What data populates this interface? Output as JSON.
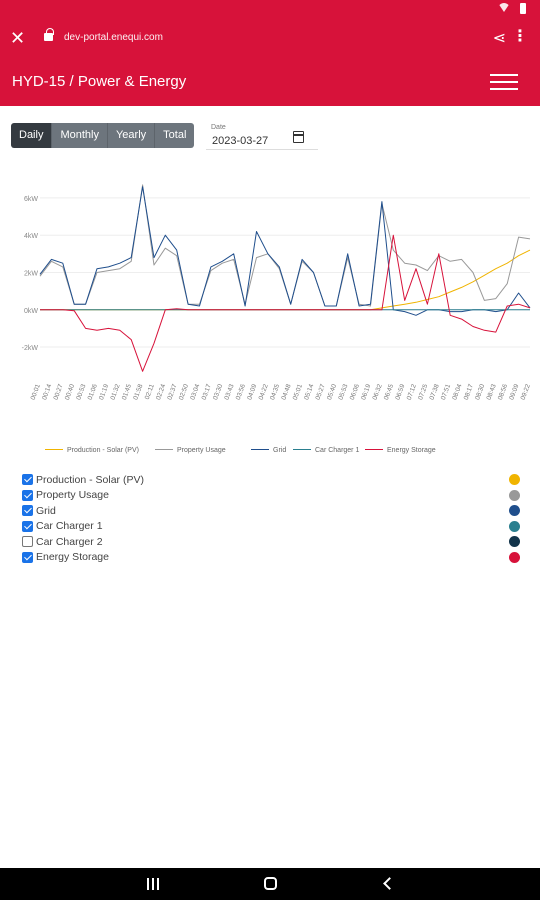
{
  "browser": {
    "url": "dev-portal.enequi.com",
    "close_icon": "close-icon",
    "share_icon": "share-icon",
    "more_icon": "more-vert-icon"
  },
  "header": {
    "title": "HYD-15 / Power & Energy",
    "menu_icon": "hamburger-icon"
  },
  "periods": [
    {
      "label": "Daily",
      "active": true
    },
    {
      "label": "Monthly",
      "active": false
    },
    {
      "label": "Yearly",
      "active": false
    },
    {
      "label": "Total",
      "active": false
    }
  ],
  "date": {
    "label": "Date",
    "value": "2023-03-27",
    "icon": "calendar-icon"
  },
  "series_list": [
    {
      "label": "Production - Solar (PV)",
      "checked": true,
      "color": "#f0b400"
    },
    {
      "label": "Property Usage",
      "checked": true,
      "color": "#999999"
    },
    {
      "label": "Grid",
      "checked": true,
      "color": "#1f4e8c"
    },
    {
      "label": "Car Charger 1",
      "checked": true,
      "color": "#2a7f8f"
    },
    {
      "label": "Car Charger 2",
      "checked": false,
      "color": "#12344a"
    },
    {
      "label": "Energy Storage",
      "checked": true,
      "color": "#d7123a"
    }
  ],
  "chart_data": {
    "type": "line",
    "yticks": [
      "6kW",
      "4kW",
      "2kW",
      "0kW",
      "-2kW"
    ],
    "ylim": [
      -3.5,
      6.8
    ],
    "grid": true,
    "legend_position": "bottom",
    "x": [
      "00:01",
      "00:14",
      "00:27",
      "00:40",
      "00:53",
      "01:06",
      "01:19",
      "01:32",
      "01:45",
      "01:58",
      "02:11",
      "02:24",
      "02:37",
      "02:50",
      "03:04",
      "03:17",
      "03:30",
      "03:43",
      "03:56",
      "04:09",
      "04:22",
      "04:35",
      "04:48",
      "05:01",
      "05:14",
      "05:27",
      "05:40",
      "05:53",
      "06:06",
      "06:19",
      "06:32",
      "06:45",
      "06:59",
      "07:12",
      "07:25",
      "07:38",
      "07:51",
      "08:04",
      "08:17",
      "08:30",
      "08:43",
      "08:56",
      "09:09",
      "09:22"
    ],
    "series": [
      {
        "name": "Production - Solar (PV)",
        "color": "#f0b400",
        "values": [
          0,
          0,
          0,
          0,
          0,
          0,
          0,
          0,
          0,
          0,
          0,
          0,
          0,
          0,
          0,
          0,
          0,
          0,
          0,
          0,
          0,
          0,
          0,
          0,
          0,
          0,
          0,
          0,
          0,
          0,
          0.1,
          0.2,
          0.3,
          0.4,
          0.55,
          0.7,
          0.95,
          1.2,
          1.5,
          1.85,
          2.2,
          2.5,
          2.9,
          3.2
        ]
      },
      {
        "name": "Property Usage",
        "color": "#999999",
        "values": [
          1.8,
          2.6,
          2.3,
          0.3,
          0.3,
          2.0,
          2.1,
          2.2,
          2.6,
          6.7,
          2.4,
          3.3,
          2.9,
          0.3,
          0.3,
          2.1,
          2.5,
          2.7,
          0.3,
          2.8,
          3.0,
          2.2,
          0.3,
          2.6,
          2.0,
          0.2,
          0.2,
          2.8,
          0.3,
          0.2,
          5.7,
          3.2,
          2.5,
          2.4,
          2.1,
          2.9,
          2.6,
          2.7,
          2.0,
          0.5,
          0.6,
          1.4,
          3.9,
          3.8
        ]
      },
      {
        "name": "Grid",
        "color": "#1f4e8c",
        "values": [
          1.9,
          2.7,
          2.5,
          0.3,
          0.3,
          2.2,
          2.3,
          2.5,
          2.8,
          6.6,
          2.8,
          4.0,
          3.2,
          0.3,
          0.2,
          2.3,
          2.6,
          3.0,
          0.2,
          4.2,
          3.0,
          2.3,
          0.3,
          2.7,
          2.0,
          0.2,
          0.2,
          3.0,
          0.2,
          0.3,
          5.8,
          0.0,
          -0.1,
          -0.3,
          0.0,
          0.0,
          -0.1,
          -0.1,
          0.0,
          0.0,
          -0.1,
          0.0,
          0.9,
          0.1
        ]
      },
      {
        "name": "Car Charger 1",
        "color": "#2a7f8f",
        "values": [
          0,
          0,
          0,
          0,
          0,
          0,
          0,
          0,
          0,
          0,
          0,
          0,
          0,
          0,
          0,
          0,
          0,
          0,
          0,
          0,
          0,
          0,
          0,
          0,
          0,
          0,
          0,
          0,
          0,
          0,
          0,
          0,
          0,
          0,
          0,
          0,
          0,
          0,
          0,
          0,
          0,
          0,
          0,
          0
        ]
      },
      {
        "name": "Energy Storage",
        "color": "#d7123a",
        "values": [
          0,
          0,
          0,
          -0.05,
          -1.0,
          -1.1,
          -1.0,
          -1.1,
          -1.6,
          -3.3,
          -1.8,
          0.0,
          0.05,
          0,
          0,
          0,
          0,
          0,
          0,
          0,
          0,
          0,
          0,
          0,
          0,
          0,
          0,
          0,
          0,
          0,
          0.0,
          4.0,
          0.5,
          2.2,
          0.3,
          3.0,
          -0.3,
          -0.5,
          -0.9,
          -1.1,
          -1.2,
          0.2,
          0.3,
          0.1
        ]
      }
    ]
  }
}
